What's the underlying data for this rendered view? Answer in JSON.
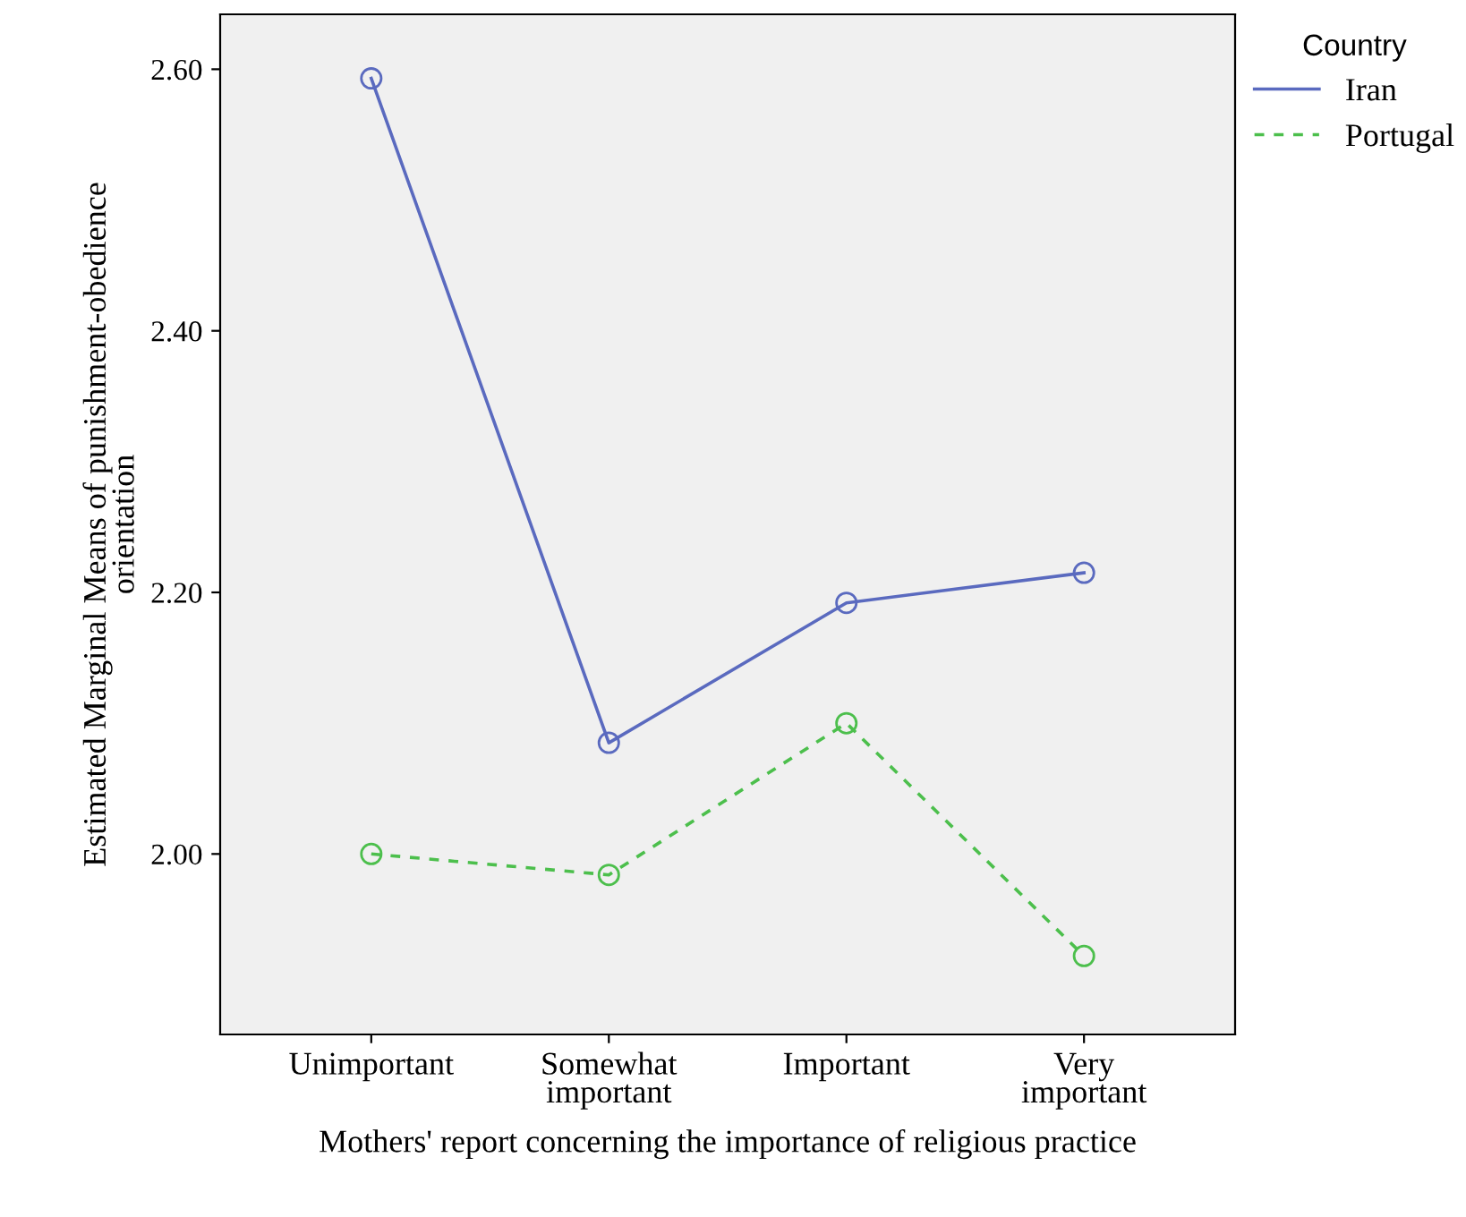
{
  "chart_data": {
    "type": "line",
    "xlabel": "Mothers' report concerning the importance of religious practice",
    "ylabel": "Estimated Marginal Means of punishment-obedience\norientation",
    "legend_title": "Country",
    "categories": [
      "Unimportant",
      "Somewhat\nimportant",
      "Important",
      "Very\nimportant"
    ],
    "series": [
      {
        "name": "Iran",
        "color": "#5a6abf",
        "values": [
          2.593,
          2.085,
          2.192,
          2.215
        ],
        "line_style": "solid"
      },
      {
        "name": "Portugal",
        "color": "#4cbf4c",
        "values": [
          2.0,
          1.984,
          2.1,
          1.922
        ],
        "line_style": "dashed"
      }
    ],
    "ylim": [
      1.862,
      2.642
    ],
    "yticks": [
      {
        "value": 2.0,
        "label": "2.00"
      },
      {
        "value": 2.2,
        "label": "2.20"
      },
      {
        "value": 2.4,
        "label": "2.40"
      },
      {
        "value": 2.6,
        "label": "2.60"
      }
    ],
    "marker": "circle",
    "grid": false,
    "legend": "top right"
  }
}
